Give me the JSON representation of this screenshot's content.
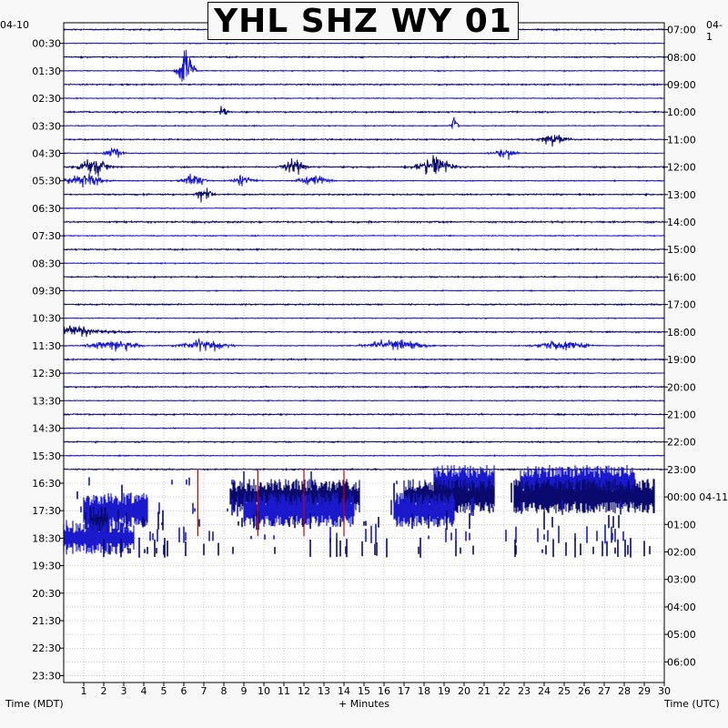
{
  "chart_data": {
    "type": "helicorder",
    "title": "YHL SHZ WY 01",
    "left_date": "04-10",
    "right_date": "04-1",
    "left_axis_title": "Time (MDT)",
    "right_axis_title": "Time (UTC)",
    "x_axis_title": "+ Minutes",
    "x_tick_labels": [
      "1",
      "2",
      "3",
      "4",
      "5",
      "6",
      "7",
      "8",
      "9",
      "10",
      "11",
      "12",
      "13",
      "14",
      "15",
      "16",
      "17",
      "18",
      "19",
      "20",
      "21",
      "22",
      "23",
      "24",
      "25",
      "26",
      "27",
      "28",
      "29",
      "30"
    ],
    "xlim": [
      0,
      30
    ],
    "left_tick_labels": [
      "00:30",
      "01:30",
      "02:30",
      "03:30",
      "04:30",
      "05:30",
      "06:30",
      "07:30",
      "08:30",
      "09:30",
      "10:30",
      "11:30",
      "12:30",
      "13:30",
      "14:30",
      "15:30",
      "16:30",
      "17:30",
      "18:30",
      "19:30",
      "20:30",
      "21:30",
      "22:30",
      "23:30"
    ],
    "right_tick_labels": [
      "07:00",
      "08:00",
      "09:00",
      "10:00",
      "11:00",
      "12:00",
      "13:00",
      "14:00",
      "15:00",
      "16:00",
      "17:00",
      "18:00",
      "19:00",
      "20:00",
      "21:00",
      "22:00",
      "23:00",
      "00:00 04-11",
      "01:00",
      "02:00",
      "03:00",
      "04:00",
      "05:00",
      "06:00"
    ],
    "lines_per_hour": 2,
    "recorded_lines": 33,
    "grid": true,
    "trace_colors": [
      "#0a0a6e",
      "#1a1acc",
      "#0a0a6e",
      "#1a1acc"
    ],
    "clip_color": "#cc0000",
    "background": "#ffffff"
  }
}
